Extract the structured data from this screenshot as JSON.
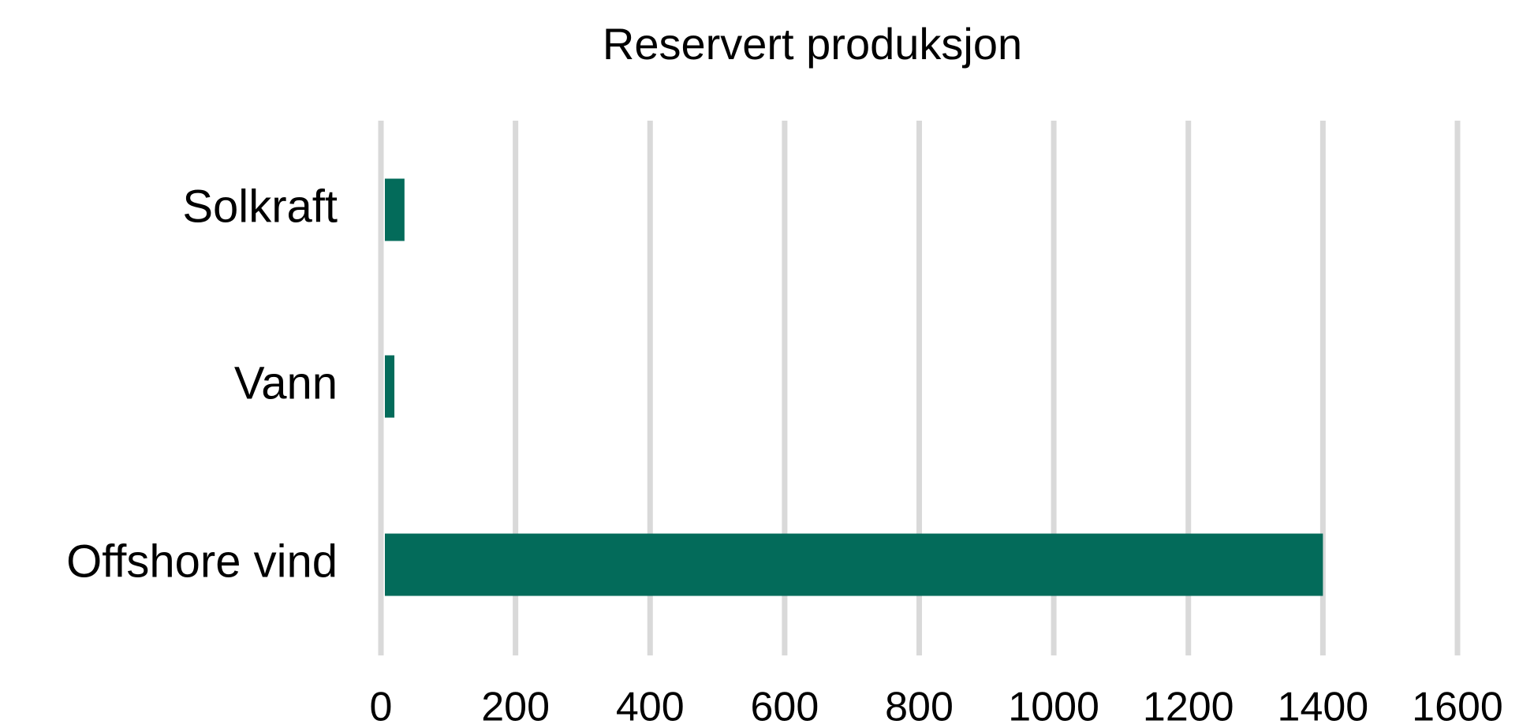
{
  "chart_data": {
    "type": "hbar",
    "title": "Reservert produksjon",
    "categories": [
      "Solkraft",
      "Vann",
      "Offshore vind"
    ],
    "values": [
      35,
      20,
      1400
    ],
    "color": "#036b5a",
    "xlim": [
      0,
      1600
    ],
    "xticks": [
      0,
      200,
      400,
      600,
      800,
      1000,
      1200,
      1400,
      1600
    ],
    "grid": true
  }
}
